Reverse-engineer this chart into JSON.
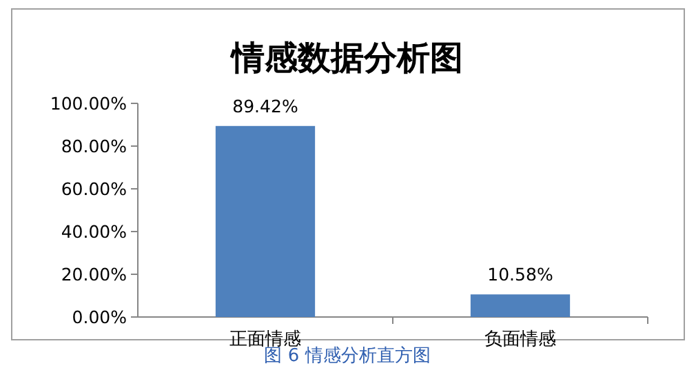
{
  "chart_data": {
    "type": "bar",
    "title": "情感数据分析图",
    "categories": [
      "正面情感",
      "负面情感"
    ],
    "values": [
      89.42,
      10.58
    ],
    "value_labels": [
      "89.42%",
      "10.58%"
    ],
    "color": "#4f81bd",
    "ylim": [
      0,
      100
    ],
    "yticks": [
      {
        "value": 0,
        "label": "0.00%"
      },
      {
        "value": 20,
        "label": "20.00%"
      },
      {
        "value": 40,
        "label": "40.00%"
      },
      {
        "value": 60,
        "label": "60.00%"
      },
      {
        "value": 80,
        "label": "80.00%"
      },
      {
        "value": 100,
        "label": "100.00%"
      }
    ],
    "annotations": [
      "图 6 情感分析直方图"
    ]
  }
}
